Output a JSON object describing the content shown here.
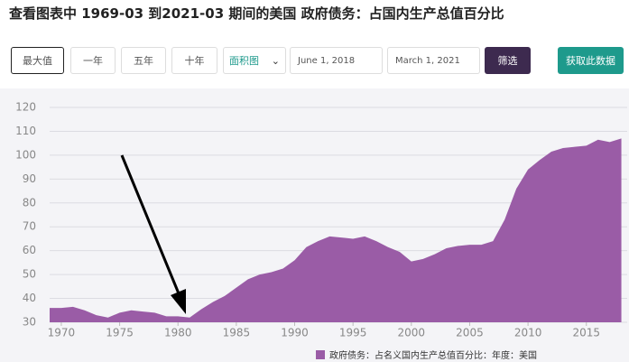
{
  "header": {
    "title": "查看图表中 1969-03 到2021-03 期间的美国 政府债务：占国内生产总值百分比"
  },
  "controls": {
    "ranges": [
      "最大值",
      "一年",
      "五年",
      "十年"
    ],
    "chart_type": "面积图",
    "start_date": "June 1, 2018",
    "end_date": "March 1, 2021",
    "filter": "筛选",
    "get_data": "获取此数据"
  },
  "chart_data": {
    "type": "area",
    "x": [
      1969,
      1970,
      1971,
      1972,
      1973,
      1974,
      1975,
      1976,
      1977,
      1978,
      1979,
      1980,
      1981,
      1982,
      1983,
      1984,
      1985,
      1986,
      1987,
      1988,
      1989,
      1990,
      1991,
      1992,
      1993,
      1994,
      1995,
      1996,
      1997,
      1998,
      1999,
      2000,
      2001,
      2002,
      2003,
      2004,
      2005,
      2006,
      2007,
      2008,
      2009,
      2010,
      2011,
      2012,
      2013,
      2014,
      2015,
      2016,
      2017,
      2018
    ],
    "series": [
      {
        "name": "政府债务：占名义国内生产总值百分比：年度：美国",
        "color": "#9a5ca6",
        "values": [
          36,
          36,
          36.5,
          35,
          33,
          32,
          34,
          35,
          34.5,
          34,
          32.5,
          32.5,
          32,
          35.5,
          38.5,
          41,
          44.5,
          48,
          50,
          51,
          52.5,
          56,
          61.5,
          64,
          66,
          65.5,
          65,
          66,
          64,
          61.5,
          59.5,
          55.5,
          56.5,
          58.5,
          61,
          62,
          62.5,
          62.5,
          64,
          73,
          86,
          94,
          98,
          101.5,
          103,
          103.5,
          104,
          106.5,
          105.5,
          107
        ]
      }
    ],
    "xlim": [
      1969,
      2018.5
    ],
    "xticks": [
      1970,
      1975,
      1980,
      1985,
      1990,
      1995,
      2000,
      2005,
      2010,
      2015
    ],
    "ylim": [
      30,
      121
    ],
    "yticks": [
      30,
      40,
      50,
      60,
      70,
      80,
      90,
      100,
      110,
      120
    ],
    "grid": true
  }
}
